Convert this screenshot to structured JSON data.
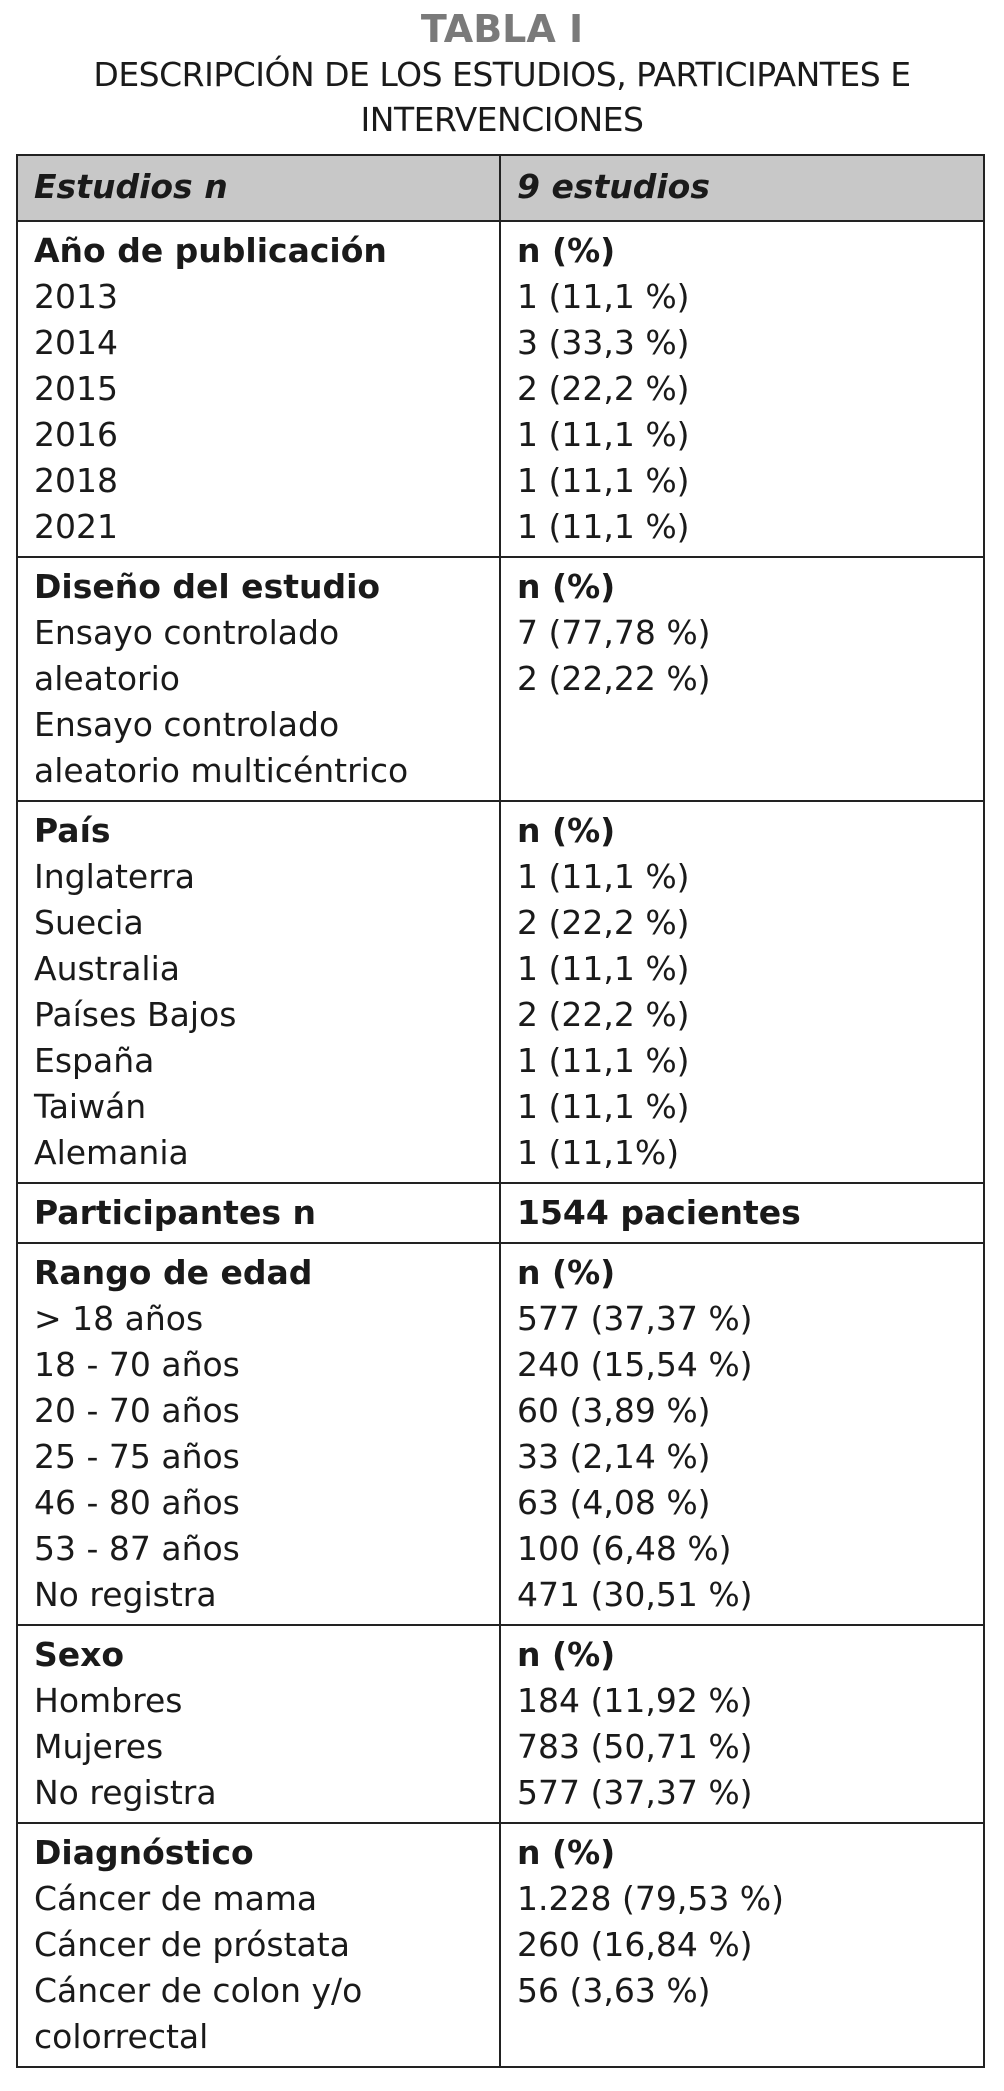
{
  "title": "TABLA I",
  "subtitle": "DESCRIPCIÓN DE LOS ESTUDIOS, PARTICIPANTES E INTERVENCIONES",
  "header": [
    "Estudios n",
    "9 estudios"
  ],
  "sections": [
    {
      "heading": [
        "Año de publicación",
        "n (%)"
      ],
      "rows": [
        [
          "2013",
          "1 (11,1 %)"
        ],
        [
          "2014",
          "3 (33,3 %)"
        ],
        [
          "2015",
          "2 (22,2 %)"
        ],
        [
          "2016",
          "1 (11,1 %)"
        ],
        [
          "2018",
          "1 (11,1 %)"
        ],
        [
          "2021",
          "1 (11,1 %)"
        ]
      ]
    },
    {
      "heading": [
        "Diseño del estudio",
        "n (%)"
      ],
      "rows": [
        [
          "Ensayo controlado aleatorio",
          "7 (77,78 %)"
        ],
        [
          "Ensayo controlado aleatorio multicéntrico",
          "2 (22,22 %)"
        ]
      ]
    },
    {
      "heading": [
        "País",
        "n (%)"
      ],
      "rows": [
        [
          "Inglaterra",
          "1 (11,1 %)"
        ],
        [
          "Suecia",
          "2 (22,2 %)"
        ],
        [
          "Australia",
          "1 (11,1 %)"
        ],
        [
          "Países Bajos",
          "2 (22,2 %)"
        ],
        [
          "España",
          "1 (11,1 %)"
        ],
        [
          "Taiwán",
          "1 (11,1 %)"
        ],
        [
          "Alemania",
          "1 (11,1%)"
        ]
      ]
    },
    {
      "heading": [
        "Participantes n",
        "1544 pacientes"
      ]
    },
    {
      "heading": [
        "Rango de edad",
        "n (%)"
      ],
      "rows": [
        [
          "> 18 años",
          "577 (37,37 %)"
        ],
        [
          "18 - 70 años",
          "240 (15,54 %)"
        ],
        [
          "20 - 70 años",
          "60 (3,89 %)"
        ],
        [
          "25 - 75 años",
          "33 (2,14 %)"
        ],
        [
          "46 - 80 años",
          "63 (4,08 %)"
        ],
        [
          "53 - 87 años",
          "100 (6,48 %)"
        ],
        [
          "No registra",
          "471 (30,51 %)"
        ]
      ]
    },
    {
      "heading": [
        "Sexo",
        "n (%)"
      ],
      "rows": [
        [
          "Hombres",
          "184 (11,92 %)"
        ],
        [
          "Mujeres",
          "783 (50,71 %)"
        ],
        [
          "No registra",
          "577 (37,37 %)"
        ]
      ]
    },
    {
      "heading": [
        "Diagnóstico",
        "n (%)"
      ],
      "rows": [
        [
          "Cáncer de mama",
          "1.228 (79,53 %)"
        ],
        [
          "Cáncer de próstata",
          "260 (16,84 %)"
        ],
        [
          "Cáncer de colon y/o colorrectal",
          "56 (3,63 %)"
        ]
      ]
    }
  ]
}
